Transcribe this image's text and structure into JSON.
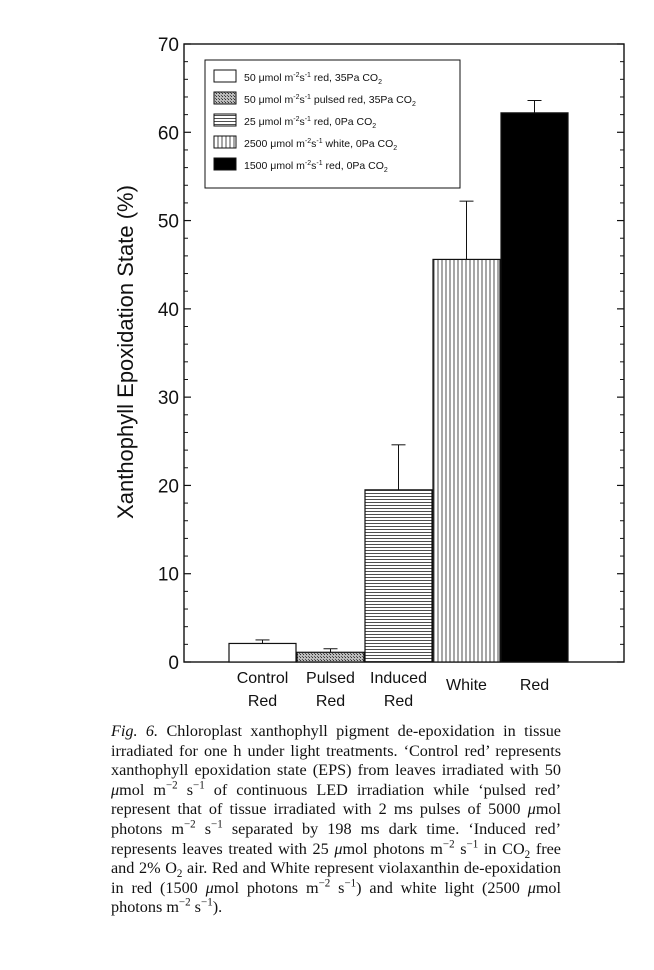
{
  "chart_data": {
    "type": "bar",
    "title": "",
    "xlabel": "",
    "ylabel": "Xanthophyll Epoxidation State (%)",
    "ylim": [
      0,
      70
    ],
    "yticks": [
      0,
      10,
      20,
      30,
      40,
      50,
      60,
      70
    ],
    "grid": false,
    "legend_position": "top-left",
    "categories": [
      {
        "line1": "Control",
        "line2": "Red"
      },
      {
        "line1": "Pulsed",
        "line2": "Red"
      },
      {
        "line1": "Induced",
        "line2": "Red"
      },
      {
        "line1": "White",
        "line2": ""
      },
      {
        "line1": "Red",
        "line2": ""
      }
    ],
    "values": [
      2.1,
      1.1,
      19.5,
      45.6,
      62.2
    ],
    "errors": [
      0.4,
      0.4,
      5.1,
      6.6,
      1.4
    ],
    "fills": [
      "open",
      "stipple",
      "horizontal-lines",
      "vertical-lines",
      "solid"
    ],
    "legend": [
      {
        "pre": "50 μmol m",
        "sup1": "-2",
        "mid": "s",
        "sup2": "-1",
        "post": " red, 35Pa CO",
        "sub": "2"
      },
      {
        "pre": "50 μmol m",
        "sup1": "-2",
        "mid": "s",
        "sup2": "-1",
        "post": " pulsed red, 35Pa CO",
        "sub": "2"
      },
      {
        "pre": "25 μmol m",
        "sup1": "-2",
        "mid": "s",
        "sup2": "-1",
        "post": " red, 0Pa CO",
        "sub": "2"
      },
      {
        "pre": "2500 μmol m",
        "sup1": "-2",
        "mid": "s",
        "sup2": "-1",
        "post": " white, 0Pa CO",
        "sub": "2"
      },
      {
        "pre": "1500 μmol m",
        "sup1": "-2",
        "mid": "s",
        "sup2": "-1",
        "post": " red, 0Pa CO",
        "sub": "2"
      }
    ]
  },
  "caption": {
    "label": "Fig. 6.",
    "p1": " Chloroplast xanthophyll pigment de-epoxidation in tissue irradiated for one h under light treatments. ‘Control red’ represents xanthophyll epoxidation state (EPS) from leaves irradiated with 50 ",
    "mu1": "μ",
    "p2": "mol m",
    "s1": "−2",
    "p3": " s",
    "s2": "−1",
    "p4": " of continuous LED irradiation while ‘pulsed red’ represent that of tissue irradiated with 2 ms pulses of 5000 ",
    "mu2": "μ",
    "p5": "mol photons m",
    "s3": "−2",
    "p6": " s",
    "s4": "−1",
    "p7": " separated by 198 ms dark time. ‘Induced red’ represents leaves treated with 25 ",
    "mu3": "μ",
    "p8": "mol photons m",
    "s5": "−2",
    "p9": " s",
    "s6": "−1",
    "p10": " in CO",
    "sub1": "2",
    "p11": " free and 2% O",
    "sub2": "2",
    "p12": " air. Red and White represent violaxanthin de-epoxidation in red (1500 ",
    "mu4": "μ",
    "p13": "mol photons m",
    "s7": "−2",
    "p14": " s",
    "s8": "−1",
    "p15": ") and white light (2500 ",
    "mu5": "μ",
    "p16": "mol photons m",
    "s9": "−2",
    "p17": " s",
    "s10": "−1",
    "p18": ")."
  }
}
